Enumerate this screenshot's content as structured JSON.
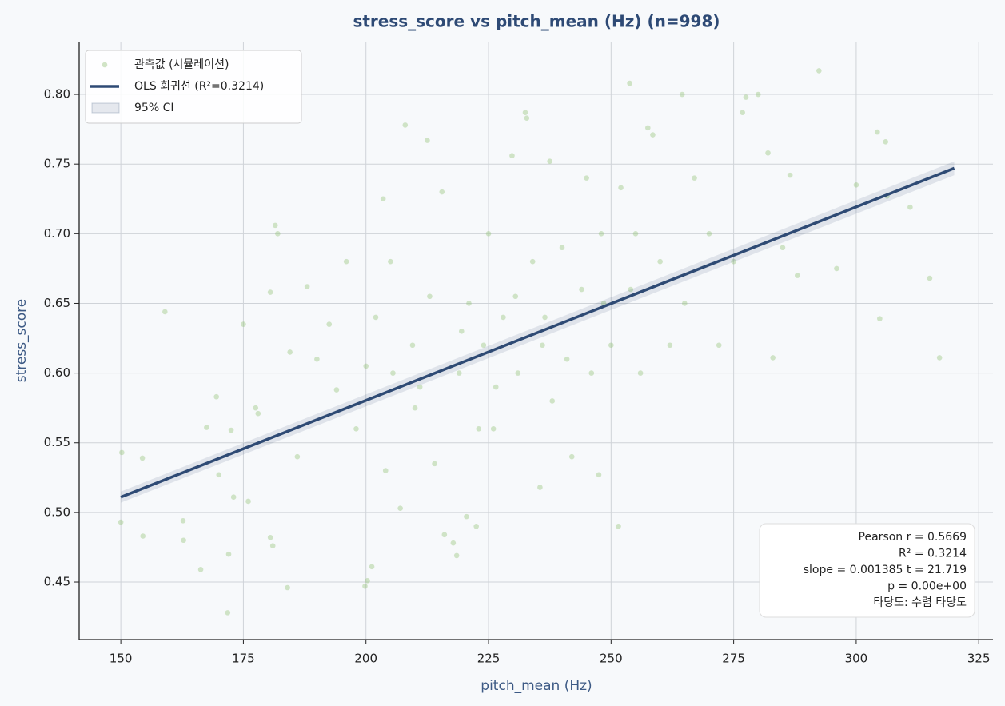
{
  "chart_data": {
    "type": "scatter",
    "title": "stress_score vs pitch_mean (Hz)  (n=998)",
    "x_label": "pitch_mean (Hz)",
    "y_label": "stress_score",
    "xlim": [
      141.5,
      327.9
    ],
    "ylim": [
      0.4087,
      0.8379
    ],
    "xticks": [
      150,
      175,
      200,
      225,
      250,
      275,
      300,
      325
    ],
    "yticks": [
      0.45,
      {
        "value": 0.5,
        "label": "0.50"
      },
      0.55,
      {
        "value": 0.6,
        "label": "0.60"
      },
      0.65,
      {
        "value": 0.7,
        "label": "0.70"
      },
      0.75,
      {
        "value": 0.8,
        "label": "0.80"
      }
    ],
    "grid": true,
    "legend": "upper left",
    "series": [
      {
        "name": "관측값 (시뮬레이션)",
        "type": "scatter",
        "color": "#8fbf70",
        "x": [
          150.2,
          150.0,
          154.4,
          154.5,
          159.0,
          162.7,
          162.8,
          166.3,
          167.5,
          169.5,
          170.0,
          171.8,
          172.0,
          172.5,
          173.0,
          175.0,
          176.0,
          177.5,
          178.0,
          180.5,
          180.5,
          181.0,
          181.5,
          182.0,
          184.0,
          184.5,
          186.0,
          188.0,
          190.0,
          192.5,
          194.0,
          196.0,
          198.0,
          199.8,
          200.3,
          201.2,
          200.0,
          202.0,
          203.5,
          204.0,
          205.0,
          207.0,
          208.0,
          209.5,
          210.0,
          212.5,
          213.0,
          214.0,
          215.5,
          216.0,
          217.8,
          218.5,
          219.0,
          220.5,
          221.0,
          222.5,
          224.0,
          225.0,
          226.0,
          228.0,
          229.8,
          231.0,
          232.5,
          232.8,
          234.0,
          235.5,
          236.0,
          237.5,
          238.0,
          240.0,
          242.0,
          244.0,
          245.0,
          246.0,
          247.5,
          248.0,
          250.0,
          251.5,
          252.0,
          253.8,
          254.0,
          256.0,
          257.5,
          258.5,
          260.0,
          262.0,
          264.5,
          265.0,
          267.0,
          270.0,
          272.0,
          275.0,
          276.8,
          277.5,
          280.0,
          282.0,
          283.0,
          285.0,
          286.5,
          288.0,
          292.4,
          296.0,
          300.0,
          304.3,
          304.8,
          306.0,
          306.3,
          317.0,
          311.0,
          315.0,
          219.5,
          226.5,
          241.0,
          230.5,
          211.0,
          236.5,
          248.5,
          223.0,
          205.5,
          255.0
        ],
        "values": [
          0.543,
          0.493,
          0.539,
          0.483,
          0.644,
          0.494,
          0.48,
          0.459,
          0.561,
          0.583,
          0.527,
          0.428,
          0.47,
          0.559,
          0.511,
          0.635,
          0.508,
          0.575,
          0.571,
          0.658,
          0.482,
          0.476,
          0.706,
          0.7,
          0.446,
          0.615,
          0.54,
          0.662,
          0.61,
          0.635,
          0.588,
          0.68,
          0.56,
          0.447,
          0.451,
          0.461,
          0.605,
          0.64,
          0.725,
          0.53,
          0.68,
          0.503,
          0.778,
          0.62,
          0.575,
          0.767,
          0.655,
          0.535,
          0.73,
          0.484,
          0.478,
          0.469,
          0.6,
          0.497,
          0.65,
          0.49,
          0.62,
          0.7,
          0.56,
          0.64,
          0.756,
          0.6,
          0.787,
          0.783,
          0.68,
          0.518,
          0.62,
          0.752,
          0.58,
          0.69,
          0.54,
          0.66,
          0.74,
          0.6,
          0.527,
          0.7,
          0.62,
          0.49,
          0.733,
          0.808,
          0.66,
          0.6,
          0.776,
          0.771,
          0.68,
          0.62,
          0.8,
          0.65,
          0.74,
          0.7,
          0.62,
          0.68,
          0.787,
          0.798,
          0.8,
          0.758,
          0.611,
          0.69,
          0.742,
          0.67,
          0.817,
          0.675,
          0.735,
          0.773,
          0.639,
          0.766,
          0.727,
          0.611,
          0.719,
          0.668,
          0.63,
          0.59,
          0.61,
          0.655,
          0.59,
          0.64,
          0.65,
          0.56,
          0.6,
          0.7
        ]
      },
      {
        "name": "OLS 회귀선 (R²=0.3214)",
        "type": "line",
        "color": "#2e4a75",
        "x": [
          150,
          320
        ],
        "values": [
          0.511,
          0.747
        ]
      },
      {
        "name": "95% CI",
        "type": "band",
        "color": "#2e4a75",
        "x": [
          150,
          320
        ],
        "lower": [
          0.507,
          0.742
        ],
        "upper": [
          0.515,
          0.752
        ]
      }
    ],
    "stats_lines": [
      "Pearson r = 0.5669",
      "R² = 0.3214",
      "slope = 0.001385  t = 21.719",
      "p = 0.00e+00",
      "타당도: 수렴 타당도"
    ]
  }
}
